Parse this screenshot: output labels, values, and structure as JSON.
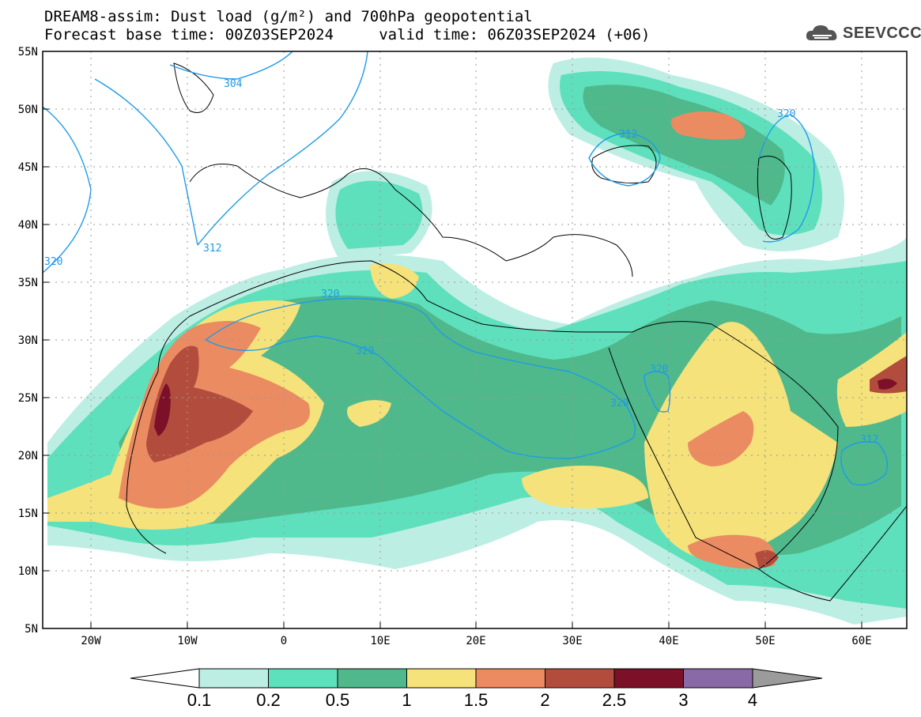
{
  "title": {
    "line1": "DREAM8-assim: Dust load (g/m²) and 700hPa geopotential",
    "line2": "Forecast base time: 00Z03SEP2024     valid time: 06Z03SEP2024 (+06)"
  },
  "logo": {
    "text": "SEEVCCC",
    "icon": "cloud-icon"
  },
  "map": {
    "lon_range": [
      -25,
      65
    ],
    "lat_range": [
      5,
      55
    ],
    "y_axis_labels": [
      "55N",
      "50N",
      "45N",
      "40N",
      "35N",
      "30N",
      "25N",
      "20N",
      "15N",
      "10N",
      "5N"
    ],
    "x_axis_labels": [
      "20W",
      "10W",
      "0",
      "10E",
      "20E",
      "30E",
      "40E",
      "50E",
      "60E"
    ],
    "contour_labels": [
      "304",
      "312",
      "320",
      "320",
      "320",
      "320",
      "320",
      "320",
      "312",
      "320",
      "312"
    ]
  },
  "colorbar": {
    "tick_labels": [
      "0.1",
      "0.2",
      "0.5",
      "1",
      "1.5",
      "2",
      "2.5",
      "3",
      "4"
    ],
    "colors": [
      "#bdeee4",
      "#5fe0bd",
      "#4fb98c",
      "#f5e27a",
      "#eb8b62",
      "#b24d3e",
      "#7c1029",
      "#8a6aa6",
      "#9b9b9b"
    ]
  },
  "colors": {
    "contour": "#1e9be8",
    "border": "#000000"
  }
}
